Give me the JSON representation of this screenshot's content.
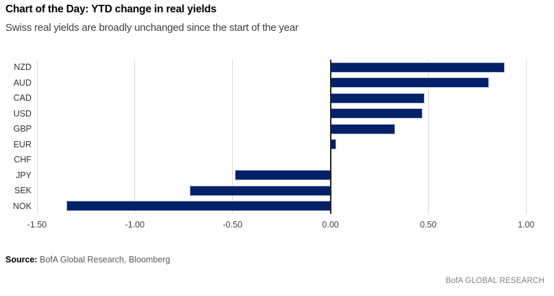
{
  "header": {
    "title": "Chart of the Day: YTD change in real yields",
    "subtitle": "Swiss real yields are broadly unchanged since the start of the year"
  },
  "footer": {
    "source_label": "Source:",
    "source_text": " BofA Global Research, Bloomberg",
    "brand": "BofA GLOBAL RESEARCH"
  },
  "chart_data": {
    "type": "bar",
    "orientation": "horizontal",
    "title": "Chart of the Day: YTD change in real yields",
    "subtitle": "Swiss real yields are broadly unchanged since the start of the year",
    "categories": [
      "NZD",
      "AUD",
      "CAD",
      "USD",
      "GBP",
      "EUR",
      "CHF",
      "JPY",
      "SEK",
      "NOK"
    ],
    "values": [
      0.89,
      0.81,
      0.48,
      0.47,
      0.33,
      0.03,
      0.0,
      -0.49,
      -0.72,
      -1.35
    ],
    "xlabel": "",
    "ylabel": "",
    "xlim": [
      -1.5,
      1.09
    ],
    "xticks": [
      -1.5,
      -1.0,
      -0.5,
      0.0,
      0.5,
      1.0
    ],
    "xtick_labels": [
      "-1.50",
      "-1.00",
      "-0.50",
      "0.00",
      "0.50",
      "1.00"
    ],
    "grid": true,
    "legend": false,
    "colors": {
      "bar": "#012169",
      "bar_border": "#aeb9d6",
      "gridline": "#d9d9d9",
      "zero_axis": "#1f1f1f",
      "tick_label": "#404040",
      "category_label": "#333333"
    }
  }
}
